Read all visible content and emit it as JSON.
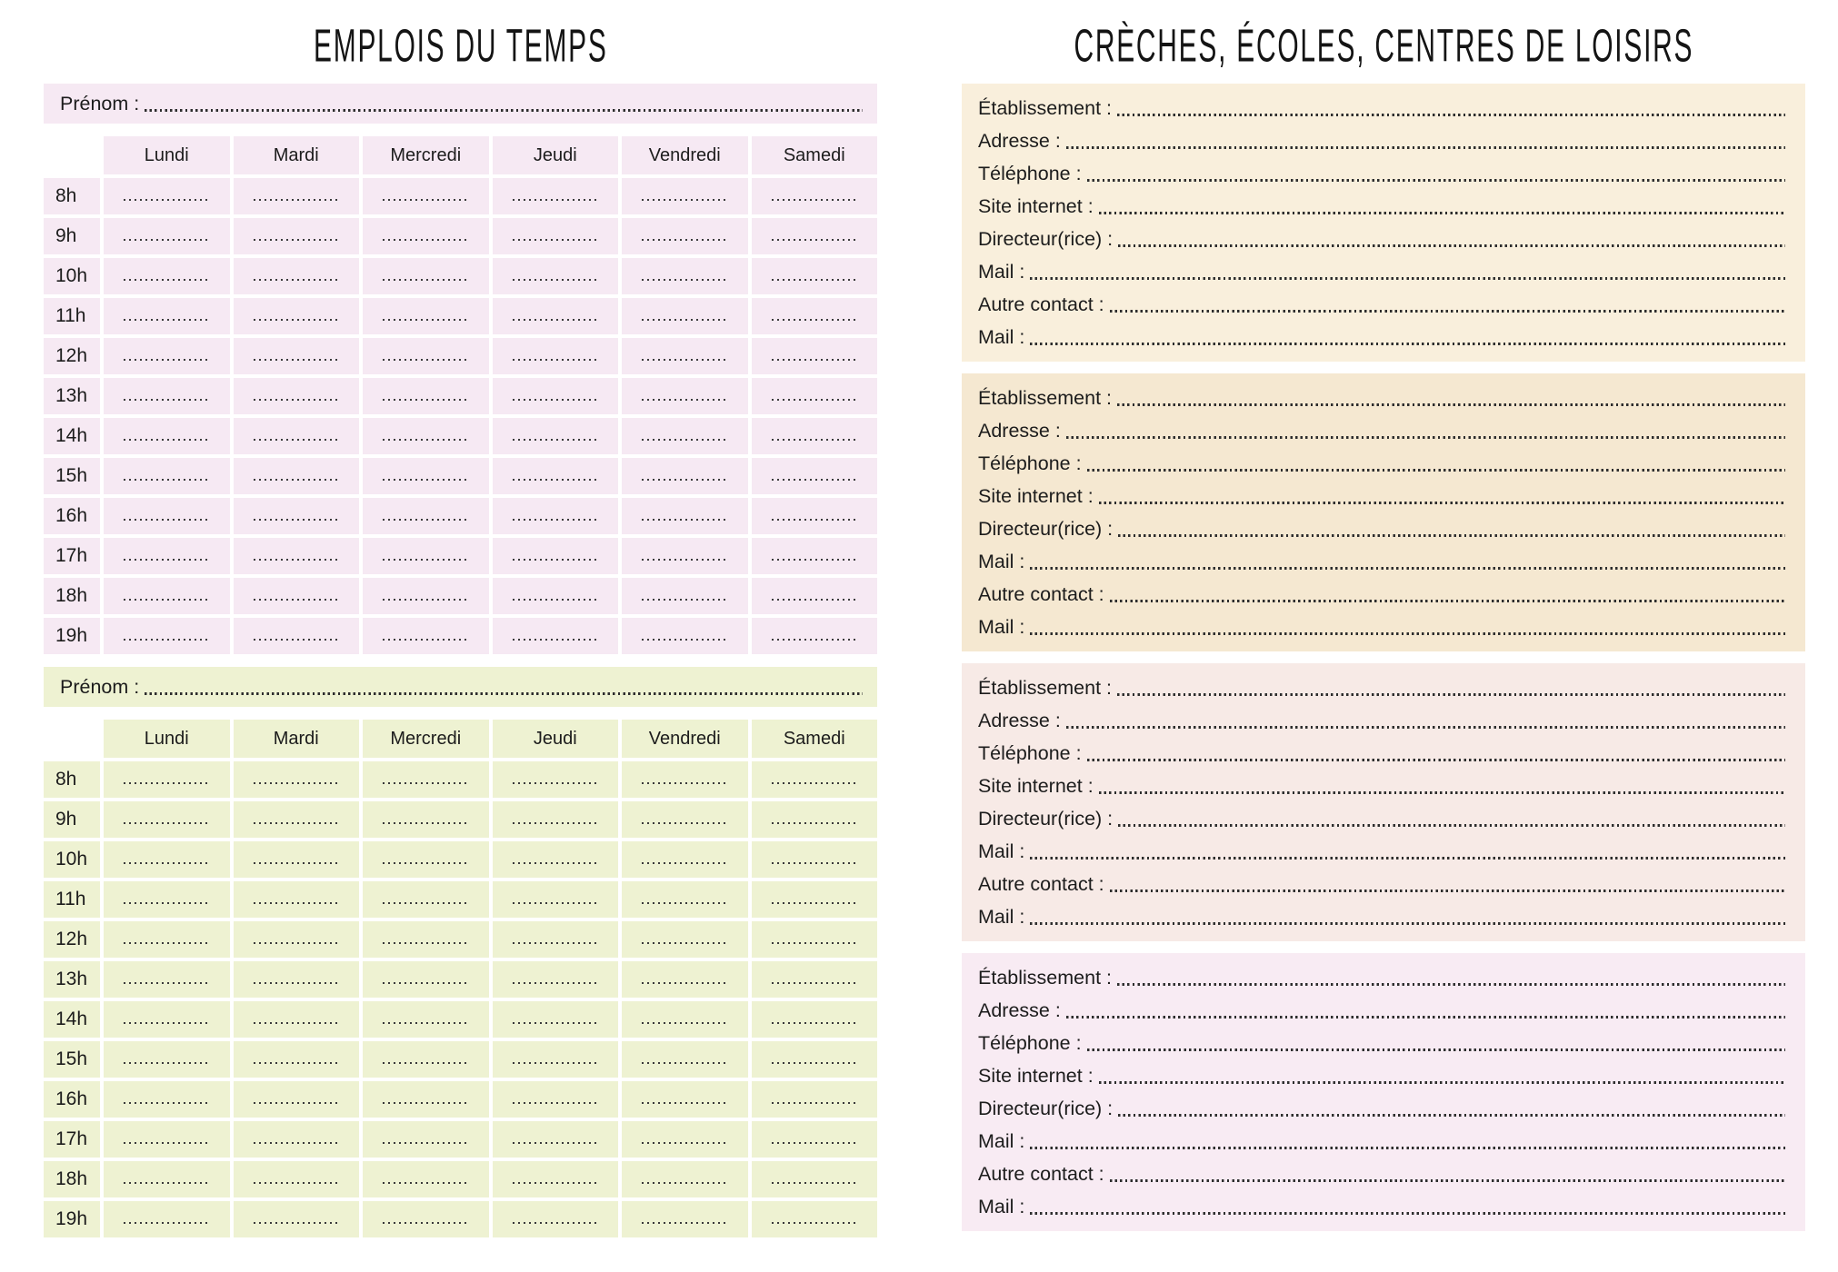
{
  "page": {
    "background": "#ffffff",
    "text_color": "#1c1c1c"
  },
  "left": {
    "title": "EMPLOIS DU TEMPS",
    "prenom_label": "Prénom :",
    "days": [
      "Lundi",
      "Mardi",
      "Mercredi",
      "Jeudi",
      "Vendredi",
      "Samedi"
    ],
    "hours": [
      "8h",
      "9h",
      "10h",
      "11h",
      "12h",
      "13h",
      "14h",
      "15h",
      "16h",
      "17h",
      "18h",
      "19h"
    ],
    "tables": [
      {
        "name": "timetable-1",
        "color": "#f6e9f3"
      },
      {
        "name": "timetable-2",
        "color": "#eef2d2"
      }
    ]
  },
  "right": {
    "title": "CRÈCHES, ÉCOLES, CENTRES DE LOISIRS",
    "field_labels": [
      "Établissement :",
      "Adresse :",
      "Téléphone :",
      "Site internet :",
      "Directeur(rice) :",
      "Mail :",
      "Autre contact :",
      "Mail :"
    ],
    "blocks": [
      {
        "name": "contact-block-1",
        "color": "#f9efdc"
      },
      {
        "name": "contact-block-2",
        "color": "#f5e8d1"
      },
      {
        "name": "contact-block-3",
        "color": "#f7eae6"
      },
      {
        "name": "contact-block-4",
        "color": "#f8ebf3"
      }
    ]
  }
}
